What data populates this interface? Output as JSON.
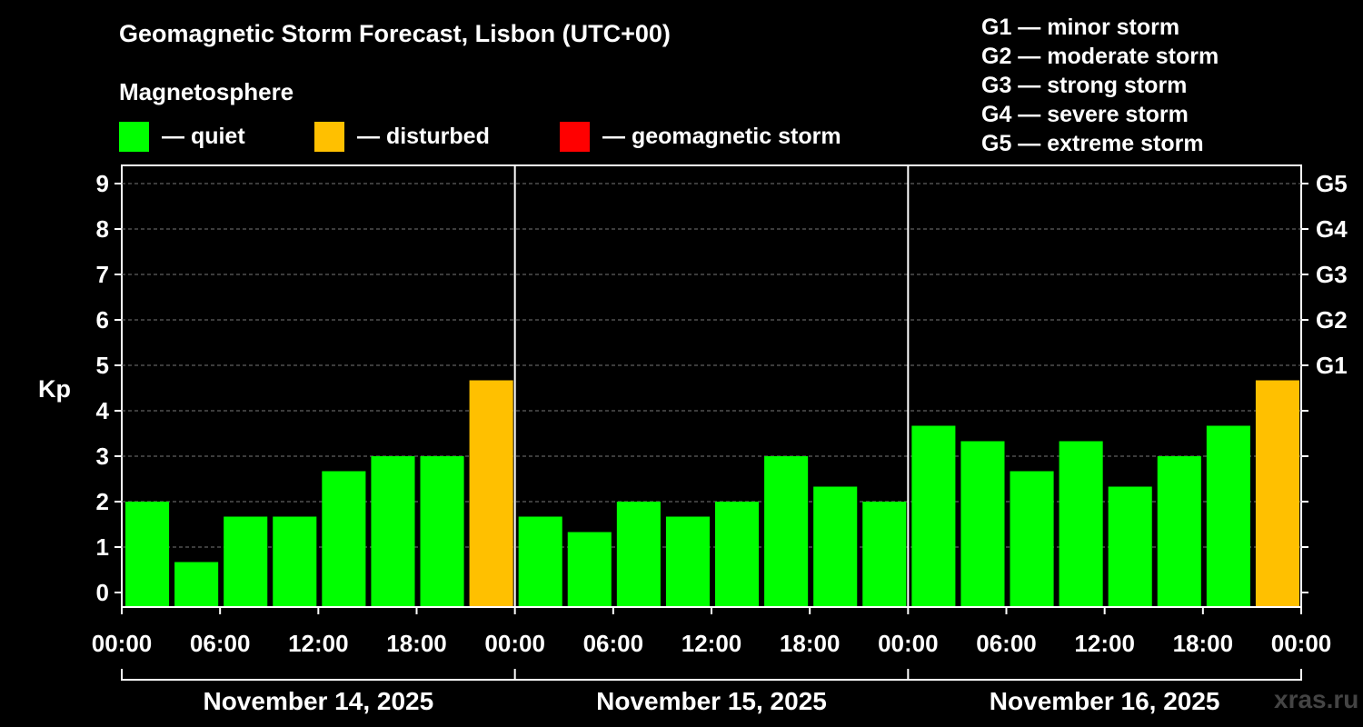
{
  "chart_data": {
    "type": "bar",
    "title": "Geomagnetic Storm Forecast, Lisbon (UTC+00)",
    "subtitle": "Magnetosphere",
    "ylabel": "Kp",
    "ylim": [
      0,
      9
    ],
    "yticks": [
      "0",
      "1",
      "2",
      "3",
      "4",
      "5",
      "6",
      "7",
      "8",
      "9"
    ],
    "right_ticks": [
      {
        "kp": 5,
        "label": "G1"
      },
      {
        "kp": 6,
        "label": "G2"
      },
      {
        "kp": 7,
        "label": "G3"
      },
      {
        "kp": 8,
        "label": "G4"
      },
      {
        "kp": 9,
        "label": "G5"
      }
    ],
    "xtick_labels": [
      "00:00",
      "06:00",
      "12:00",
      "18:00",
      "00:00",
      "06:00",
      "12:00",
      "18:00",
      "00:00",
      "06:00",
      "12:00",
      "18:00",
      "00:00"
    ],
    "days": [
      "November 14, 2025",
      "November 15, 2025",
      "November 16, 2025"
    ],
    "values": [
      2.0,
      0.67,
      1.67,
      1.67,
      2.67,
      3.0,
      3.0,
      4.67,
      1.67,
      1.33,
      2.0,
      1.67,
      2.0,
      3.0,
      2.33,
      2.0,
      3.67,
      3.33,
      2.67,
      3.33,
      2.33,
      3.0,
      3.67,
      4.67
    ],
    "levels": [
      "quiet",
      "quiet",
      "quiet",
      "quiet",
      "quiet",
      "quiet",
      "quiet",
      "disturbed",
      "quiet",
      "quiet",
      "quiet",
      "quiet",
      "quiet",
      "quiet",
      "quiet",
      "quiet",
      "quiet",
      "quiet",
      "quiet",
      "quiet",
      "quiet",
      "quiet",
      "quiet",
      "disturbed"
    ],
    "colors": {
      "quiet": "#00ff00",
      "disturbed": "#ffc000",
      "storm": "#ff0000"
    },
    "grid": true
  },
  "legend": [
    {
      "label": "— quiet",
      "color": "#00ff00"
    },
    {
      "label": "— disturbed",
      "color": "#ffc000"
    },
    {
      "label": "— geomagnetic storm",
      "color": "#ff0000"
    }
  ],
  "storm_scale": [
    "G1 — minor storm",
    "G2 — moderate storm",
    "G3 — strong storm",
    "G4 — severe storm",
    "G5 — extreme storm"
  ],
  "watermark": "xras.ru"
}
